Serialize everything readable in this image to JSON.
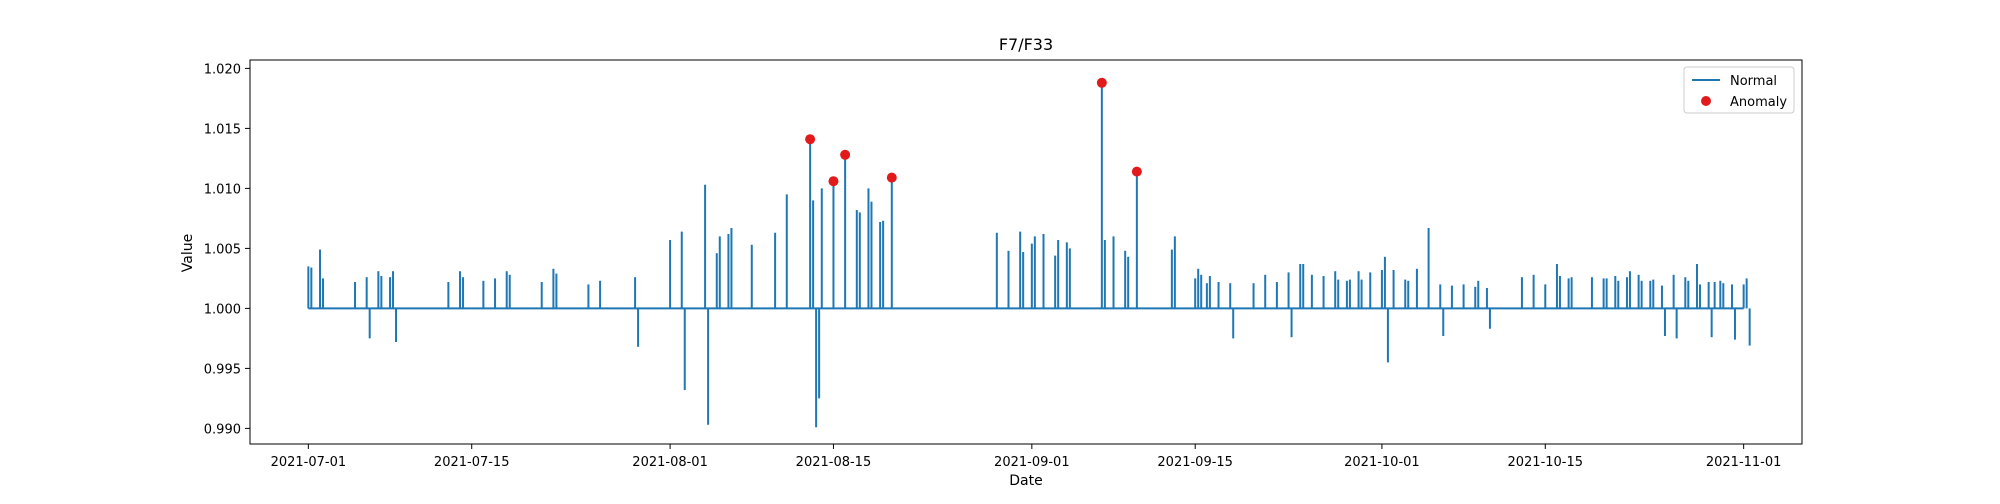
{
  "chart_data": {
    "type": "line",
    "title": "F7/F33",
    "xlabel": "Date",
    "ylabel": "Value",
    "x_axis": "date",
    "xlim": [
      "2021-06-26",
      "2021-11-06"
    ],
    "ylim": [
      0.9887,
      1.0207
    ],
    "xticks": [
      "2021-07-01",
      "2021-07-15",
      "2021-08-01",
      "2021-08-15",
      "2021-09-01",
      "2021-09-15",
      "2021-10-01",
      "2021-10-15",
      "2021-11-01"
    ],
    "yticks": [
      "0.990",
      "0.995",
      "1.000",
      "1.005",
      "1.010",
      "1.015",
      "1.020"
    ],
    "grid": false,
    "legend_position": "top-right",
    "series": [
      {
        "name": "Normal",
        "kind": "line",
        "color": "#1f77b4",
        "baseline": 1.0,
        "spikes": [
          [
            "2021-07-01",
            1.0035
          ],
          [
            "2021-07-01",
            1.0034
          ],
          [
            "2021-07-02",
            1.0049
          ],
          [
            "2021-07-02",
            1.0025
          ],
          [
            "2021-07-05",
            1.0022
          ],
          [
            "2021-07-06",
            1.0026
          ],
          [
            "2021-07-06",
            0.9975
          ],
          [
            "2021-07-07",
            1.0031
          ],
          [
            "2021-07-07",
            1.0027
          ],
          [
            "2021-07-08",
            1.0026
          ],
          [
            "2021-07-08",
            1.0031
          ],
          [
            "2021-07-08",
            0.9972
          ],
          [
            "2021-07-13",
            1.0022
          ],
          [
            "2021-07-14",
            1.0031
          ],
          [
            "2021-07-14",
            1.0026
          ],
          [
            "2021-07-16",
            1.0023
          ],
          [
            "2021-07-17",
            1.0025
          ],
          [
            "2021-07-18",
            1.0031
          ],
          [
            "2021-07-18",
            1.0028
          ],
          [
            "2021-07-21",
            1.0022
          ],
          [
            "2021-07-22",
            1.0033
          ],
          [
            "2021-07-22",
            1.0029
          ],
          [
            "2021-07-25",
            1.002
          ],
          [
            "2021-07-26",
            1.0023
          ],
          [
            "2021-07-29",
            1.0026
          ],
          [
            "2021-07-29",
            0.9968
          ],
          [
            "2021-08-01",
            1.0057
          ],
          [
            "2021-08-02",
            1.0064
          ],
          [
            "2021-08-02",
            0.9932
          ],
          [
            "2021-08-04",
            1.0103
          ],
          [
            "2021-08-04",
            0.9903
          ],
          [
            "2021-08-05",
            1.0046
          ],
          [
            "2021-08-05",
            1.006
          ],
          [
            "2021-08-06",
            1.0062
          ],
          [
            "2021-08-06",
            1.0067
          ],
          [
            "2021-08-08",
            1.0053
          ],
          [
            "2021-08-10",
            1.0063
          ],
          [
            "2021-08-11",
            1.0095
          ],
          [
            "2021-08-13",
            1.0141
          ],
          [
            "2021-08-13",
            1.009
          ],
          [
            "2021-08-13",
            0.9901
          ],
          [
            "2021-08-13",
            0.9925
          ],
          [
            "2021-08-14",
            1.01
          ],
          [
            "2021-08-15",
            1.0106
          ],
          [
            "2021-08-16",
            1.0128
          ],
          [
            "2021-08-17",
            1.0082
          ],
          [
            "2021-08-17",
            1.008
          ],
          [
            "2021-08-18",
            1.01
          ],
          [
            "2021-08-18",
            1.0089
          ],
          [
            "2021-08-19",
            1.0072
          ],
          [
            "2021-08-19",
            1.0073
          ],
          [
            "2021-08-20",
            1.0109
          ],
          [
            "2021-08-29",
            1.0063
          ],
          [
            "2021-08-30",
            1.0048
          ],
          [
            "2021-08-31",
            1.0064
          ],
          [
            "2021-08-31",
            1.0047
          ],
          [
            "2021-09-01",
            1.0054
          ],
          [
            "2021-09-01",
            1.006
          ],
          [
            "2021-09-02",
            1.0062
          ],
          [
            "2021-09-03",
            1.0044
          ],
          [
            "2021-09-03",
            1.0057
          ],
          [
            "2021-09-04",
            1.0055
          ],
          [
            "2021-09-04",
            1.005
          ],
          [
            "2021-09-07",
            1.0188
          ],
          [
            "2021-09-07",
            1.0057
          ],
          [
            "2021-09-08",
            1.006
          ],
          [
            "2021-09-09",
            1.0048
          ],
          [
            "2021-09-09",
            1.0043
          ],
          [
            "2021-09-10",
            1.0114
          ],
          [
            "2021-09-13",
            1.0049
          ],
          [
            "2021-09-13",
            1.006
          ],
          [
            "2021-09-15",
            1.0025
          ],
          [
            "2021-09-15",
            1.0033
          ],
          [
            "2021-09-15",
            1.0028
          ],
          [
            "2021-09-16",
            1.0021
          ],
          [
            "2021-09-16",
            1.0027
          ],
          [
            "2021-09-17",
            1.0022
          ],
          [
            "2021-09-18",
            1.0021
          ],
          [
            "2021-09-18",
            0.9975
          ],
          [
            "2021-09-20",
            1.0021
          ],
          [
            "2021-09-21",
            1.0028
          ],
          [
            "2021-09-22",
            1.0022
          ],
          [
            "2021-09-23",
            1.003
          ],
          [
            "2021-09-23",
            0.9976
          ],
          [
            "2021-09-24",
            1.0037
          ],
          [
            "2021-09-24",
            1.0037
          ],
          [
            "2021-09-25",
            1.0028
          ],
          [
            "2021-09-26",
            1.0027
          ],
          [
            "2021-09-27",
            1.0031
          ],
          [
            "2021-09-27",
            1.0024
          ],
          [
            "2021-09-28",
            1.0023
          ],
          [
            "2021-09-28",
            1.0024
          ],
          [
            "2021-09-29",
            1.0031
          ],
          [
            "2021-09-29",
            1.0024
          ],
          [
            "2021-09-30",
            1.003
          ],
          [
            "2021-10-01",
            1.0032
          ],
          [
            "2021-10-01",
            1.0043
          ],
          [
            "2021-10-01",
            0.9955
          ],
          [
            "2021-10-02",
            1.0032
          ],
          [
            "2021-10-03",
            1.0024
          ],
          [
            "2021-10-03",
            1.0023
          ],
          [
            "2021-10-04",
            1.0033
          ],
          [
            "2021-10-05",
            1.0067
          ],
          [
            "2021-10-06",
            1.002
          ],
          [
            "2021-10-06",
            0.9977
          ],
          [
            "2021-10-07",
            1.0019
          ],
          [
            "2021-10-08",
            1.002
          ],
          [
            "2021-10-09",
            1.0018
          ],
          [
            "2021-10-09",
            1.0023
          ],
          [
            "2021-10-10",
            1.0017
          ],
          [
            "2021-10-10",
            0.9983
          ],
          [
            "2021-10-13",
            1.0026
          ],
          [
            "2021-10-14",
            1.0028
          ],
          [
            "2021-10-15",
            1.002
          ],
          [
            "2021-10-16",
            1.0037
          ],
          [
            "2021-10-16",
            1.0027
          ],
          [
            "2021-10-17",
            1.0025
          ],
          [
            "2021-10-17",
            1.0026
          ],
          [
            "2021-10-19",
            1.0026
          ],
          [
            "2021-10-20",
            1.0025
          ],
          [
            "2021-10-20",
            1.0025
          ],
          [
            "2021-10-21",
            1.0027
          ],
          [
            "2021-10-21",
            1.0023
          ],
          [
            "2021-10-22",
            1.0026
          ],
          [
            "2021-10-22",
            1.0031
          ],
          [
            "2021-10-23",
            1.0028
          ],
          [
            "2021-10-23",
            1.0023
          ],
          [
            "2021-10-24",
            1.0023
          ],
          [
            "2021-10-24",
            1.0024
          ],
          [
            "2021-10-25",
            1.0019
          ],
          [
            "2021-10-25",
            0.9977
          ],
          [
            "2021-10-26",
            1.0028
          ],
          [
            "2021-10-26",
            0.9975
          ],
          [
            "2021-10-27",
            1.0026
          ],
          [
            "2021-10-27",
            1.0023
          ],
          [
            "2021-10-28",
            1.0037
          ],
          [
            "2021-10-28",
            1.002
          ],
          [
            "2021-10-29",
            1.0022
          ],
          [
            "2021-10-29",
            0.9976
          ],
          [
            "2021-10-29",
            1.0022
          ],
          [
            "2021-10-30",
            1.0023
          ],
          [
            "2021-10-30",
            1.0021
          ],
          [
            "2021-10-31",
            1.002
          ],
          [
            "2021-10-31",
            0.9974
          ],
          [
            "2021-11-01",
            1.002
          ],
          [
            "2021-11-01",
            1.0025
          ],
          [
            "2021-11-01",
            0.9969
          ]
        ]
      },
      {
        "name": "Anomaly",
        "kind": "scatter",
        "color": "#e31a1c",
        "points": [
          [
            "2021-08-13",
            1.0141
          ],
          [
            "2021-08-15",
            1.0106
          ],
          [
            "2021-08-16",
            1.0128
          ],
          [
            "2021-08-20",
            1.0109
          ],
          [
            "2021-09-07",
            1.0188
          ],
          [
            "2021-09-10",
            1.0114
          ]
        ]
      }
    ]
  }
}
